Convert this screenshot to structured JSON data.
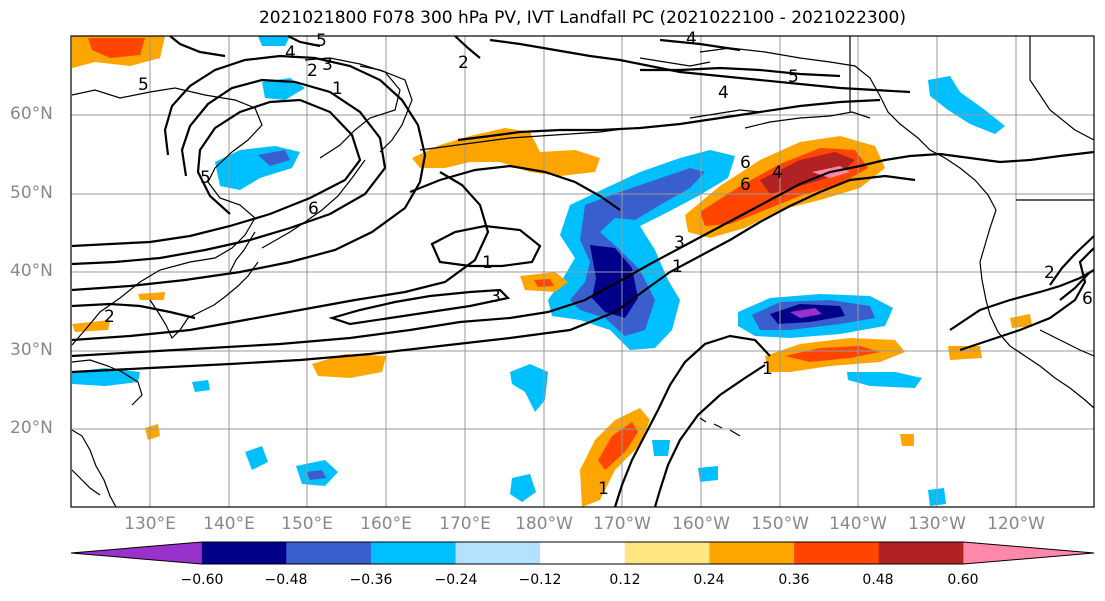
{
  "title": "2021021800 F078 300 hPa PV, IVT Landfall PC (2021022100 - 2021022300)",
  "lat_labels": [
    "60°N",
    "50°N",
    "40°N",
    "30°N",
    "20°N"
  ],
  "lon_labels": [
    "130°E",
    "140°E",
    "150°E",
    "160°E",
    "170°E",
    "180°W",
    "170°W",
    "160°W",
    "150°W",
    "140°W",
    "130°W",
    "120°W"
  ],
  "colorbar": {
    "ticks": [
      "−0.60",
      "−0.48",
      "−0.36",
      "−0.24",
      "−0.12",
      "0.12",
      "0.24",
      "0.36",
      "0.48",
      "0.60"
    ],
    "colors": [
      "#9932cc",
      "#00008b",
      "#3a5fcd",
      "#00bfff",
      "#b2e2ff",
      "#ffffff",
      "#ffe680",
      "#ffa500",
      "#ff4500",
      "#b22222",
      "#ff88aa"
    ]
  },
  "contour_labels": [
    "1",
    "1",
    "1",
    "1",
    "2",
    "2",
    "2",
    "3",
    "3",
    "3",
    "4",
    "4",
    "4",
    "5",
    "5",
    "5",
    "5",
    "6",
    "6",
    "6",
    "1",
    "2",
    "4",
    "6"
  ],
  "colors": {
    "neg_dark": "#00008b",
    "neg_mid": "#3a5fcd",
    "neg_light": "#00bfff",
    "pos_light": "#ffa500",
    "pos_mid": "#ff4500",
    "pos_dark": "#b22222",
    "pos_max": "#ff88aa"
  }
}
